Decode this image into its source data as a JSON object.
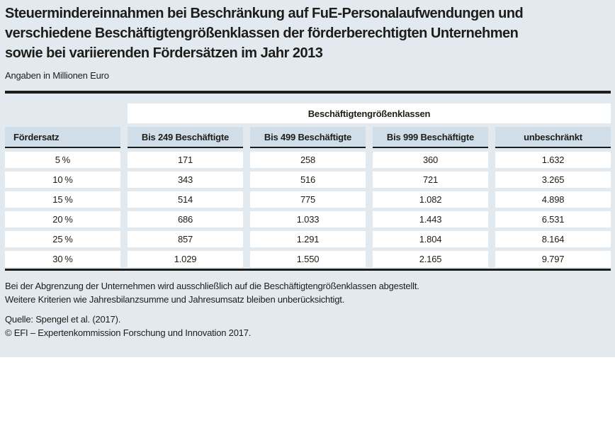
{
  "title": "Steuermindereinnahmen bei Beschränkung auf FuE-Personalaufwendungen und\nverschiedene Beschäftigtengrößenklassen der förderberechtigten Unternehmen\nsowie bei variierenden Fördersätzen im Jahr 2013",
  "subtitle": "Angaben in Millionen Euro",
  "table": {
    "group_header": "Beschäftigtengrößenklassen",
    "columns": [
      "Fördersatz",
      "Bis 249 Beschäftigte",
      "Bis 499 Beschäftigte",
      "Bis 999 Beschäftigte",
      "unbeschränkt"
    ],
    "rows": [
      [
        "5 %",
        "171",
        "258",
        "360",
        "1.632"
      ],
      [
        "10 %",
        "343",
        "516",
        "721",
        "3.265"
      ],
      [
        "15 %",
        "514",
        "775",
        "1.082",
        "4.898"
      ],
      [
        "20 %",
        "686",
        "1.033",
        "1.443",
        "6.531"
      ],
      [
        "25 %",
        "857",
        "1.291",
        "1.804",
        "8.164"
      ],
      [
        "30 %",
        "1.029",
        "1.550",
        "2.165",
        "9.797"
      ]
    ]
  },
  "footnotes": {
    "note_line1": "Bei der Abgrenzung der Unternehmen wird ausschließlich auf die Beschäftigtengrößenklassen abgestellt.",
    "note_line2": "Weitere Kriterien wie Jahresbilanzsumme und Jahresumsatz bleiben unberücksichtigt.",
    "source": "Quelle: Spengel et al. (2017).",
    "copyright": "© EFI – Expertenkommission Forschung und Innovation 2017."
  },
  "chart_data": {
    "type": "table",
    "title": "Steuermindereinnahmen bei Beschränkung auf FuE-Personalaufwendungen und verschiedene Beschäftigtengrößenklassen der förderberechtigten Unternehmen sowie bei variierenden Fördersätzen im Jahr 2013",
    "unit": "Millionen Euro",
    "xlabel": "Fördersatz",
    "x": [
      5,
      10,
      15,
      20,
      25,
      30
    ],
    "x_tick_labels": [
      "5 %",
      "10 %",
      "15 %",
      "20 %",
      "25 %",
      "30 %"
    ],
    "series": [
      {
        "name": "Bis 249 Beschäftigte",
        "values": [
          171,
          343,
          514,
          686,
          857,
          1029
        ]
      },
      {
        "name": "Bis 499 Beschäftigte",
        "values": [
          258,
          516,
          775,
          1033,
          1291,
          1550
        ]
      },
      {
        "name": "Bis 999 Beschäftigte",
        "values": [
          360,
          721,
          1082,
          1443,
          1804,
          2165
        ]
      },
      {
        "name": "unbeschränkt",
        "values": [
          1632,
          3265,
          4898,
          6531,
          8164,
          9797
        ]
      }
    ]
  },
  "colors": {
    "page_bg": "#e2eaf0",
    "header_cell_bg": "#cfdee8",
    "cell_bg": "#ffffff",
    "ink": "#1d1d1b"
  }
}
